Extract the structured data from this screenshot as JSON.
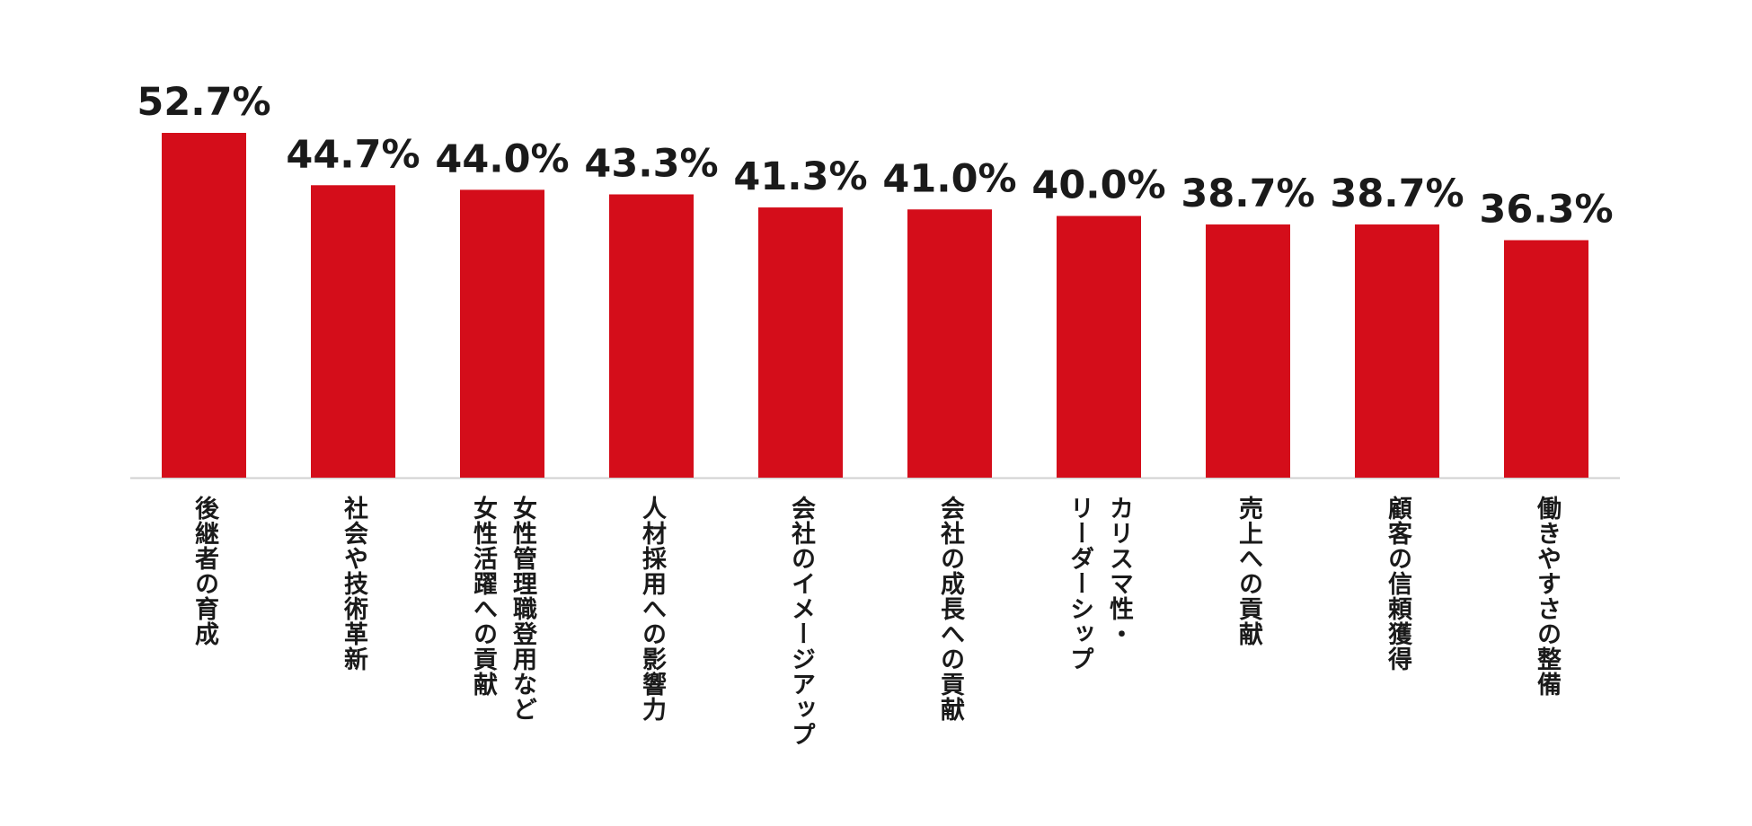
{
  "chart_data": {
    "type": "bar",
    "categories": [
      "後継者の育成",
      "社会や技術革新",
      "女性管理職登用など\n女性活躍への貢献",
      "人材採用への影響力",
      "会社のイメージアップ",
      "会社の成長への貢献",
      "カリスマ性・\nリーダーシップ",
      "売上への貢献",
      "顧客の信頼獲得",
      "働きやすさの整備"
    ],
    "values": [
      52.7,
      44.7,
      44.0,
      43.3,
      41.3,
      41.0,
      40.0,
      38.7,
      38.7,
      36.3
    ],
    "value_labels": [
      "52.7%",
      "44.7%",
      "44.0%",
      "43.3%",
      "41.3%",
      "41.0%",
      "40.0%",
      "38.7%",
      "38.7%",
      "36.3%"
    ],
    "ylim": [
      0,
      52.7
    ],
    "grid": false,
    "legend": "none",
    "colors": {
      "bar": "#D40D1A",
      "axis": "#D0D0D0",
      "text": "#1a1a1a"
    }
  }
}
